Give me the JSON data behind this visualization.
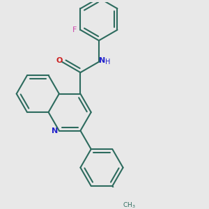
{
  "bg_color": "#e8e8e8",
  "bond_color": "#2d6b5e",
  "N_color": "#2222cc",
  "O_color": "#cc2222",
  "F_color": "#cc44aa",
  "lw": 1.5,
  "dbo": 0.018,
  "figsize": [
    3.0,
    3.0
  ],
  "dpi": 100,
  "xlim": [
    0.0,
    1.0
  ],
  "ylim": [
    0.0,
    1.0
  ]
}
